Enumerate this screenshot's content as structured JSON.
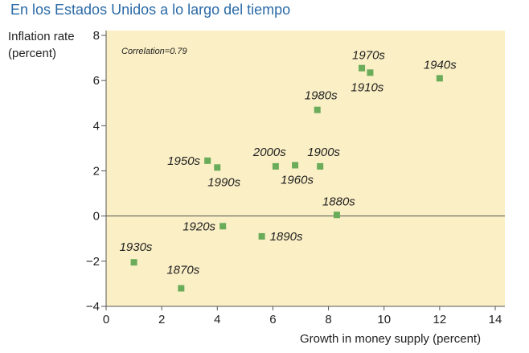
{
  "header": {
    "title": "En los Estados Unidos a lo largo del tiempo"
  },
  "chart_data": {
    "type": "scatter",
    "title": "",
    "ylabel_lines": [
      "Inflation rate",
      "(percent)"
    ],
    "xlabel": "Growth in money supply (percent)",
    "annotation": "Correlation=0.79",
    "xlim": [
      0,
      14
    ],
    "ylim": [
      -4,
      8
    ],
    "xticks": [
      0,
      2,
      4,
      6,
      8,
      10,
      12,
      14
    ],
    "yticks": [
      -4,
      -2,
      0,
      2,
      4,
      6,
      8
    ],
    "ytick_labels": [
      "−4",
      "−2",
      "0",
      "2",
      "4",
      "6",
      "8"
    ],
    "grid": false,
    "background_color": "#fbefc5",
    "marker_color": "#6aac5a",
    "points": [
      {
        "label": "1870s",
        "x": 2.7,
        "y": -3.2
      },
      {
        "label": "1880s",
        "x": 8.3,
        "y": 0.05
      },
      {
        "label": "1890s",
        "x": 5.6,
        "y": -0.9
      },
      {
        "label": "1900s",
        "x": 7.7,
        "y": 2.2
      },
      {
        "label": "1910s",
        "x": 9.5,
        "y": 6.35
      },
      {
        "label": "1920s",
        "x": 4.2,
        "y": -0.45
      },
      {
        "label": "1930s",
        "x": 1.0,
        "y": -2.05
      },
      {
        "label": "1940s",
        "x": 12.0,
        "y": 6.1
      },
      {
        "label": "1950s",
        "x": 3.65,
        "y": 2.45
      },
      {
        "label": "1960s",
        "x": 6.8,
        "y": 2.25
      },
      {
        "label": "1970s",
        "x": 9.2,
        "y": 6.55
      },
      {
        "label": "1980s",
        "x": 7.6,
        "y": 4.7
      },
      {
        "label": "1990s",
        "x": 4.0,
        "y": 2.15
      },
      {
        "label": "2000s",
        "x": 6.1,
        "y": 2.2
      }
    ]
  }
}
